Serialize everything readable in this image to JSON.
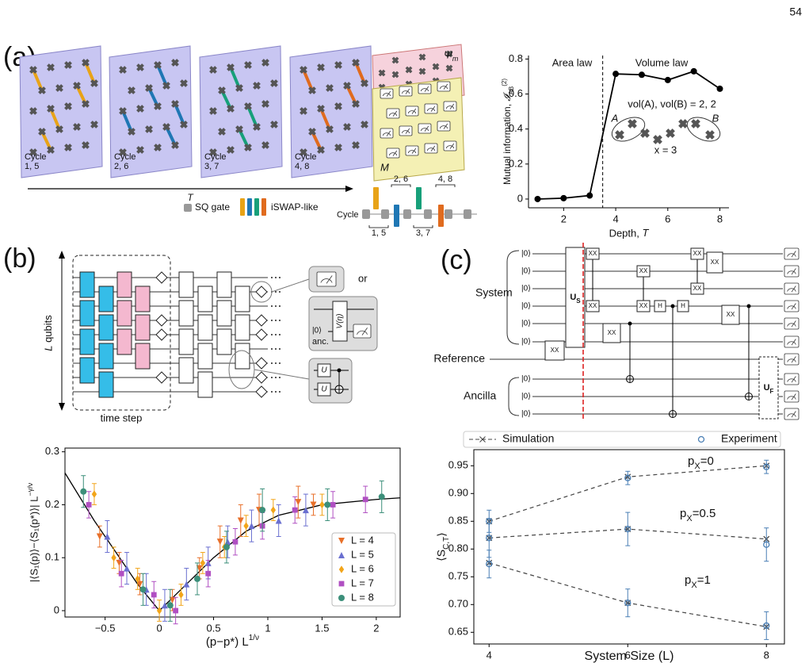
{
  "page_number": "54",
  "panel_a": {
    "label": "(a)",
    "cycles": [
      {
        "word": "Cycle",
        "steps": "1, 5"
      },
      {
        "word": "Cycle",
        "steps": "2, 6"
      },
      {
        "word": "Cycle",
        "steps": "3, 7"
      },
      {
        "word": "Cycle",
        "steps": "4, 8"
      }
    ],
    "cycle_colors": [
      "#e8a317",
      "#1f77b4",
      "#17a07a",
      "#e06b1e"
    ],
    "measured_state": "Ψ",
    "measured_state_sub": "m",
    "measurement": "M",
    "time_axis": "T",
    "legend": {
      "single": "SQ gate",
      "two": "iSWAP-like"
    },
    "circuit": {
      "start": "Cycle",
      "brackets": [
        "1, 5",
        "2, 6",
        "3, 7",
        "4, 8"
      ]
    }
  },
  "panel_b": {
    "label": "(b)",
    "qubits_var": "L",
    "qubits": " qubits",
    "time_step": "time step",
    "or": "or",
    "ket": "|0⟩",
    "ancilla": "anc.",
    "gate_v": "V(η)",
    "gate_u": [
      "U",
      "U"
    ]
  },
  "panel_c": {
    "label": "(c)",
    "system": "System",
    "reference": "Reference",
    "ancilla": "Ancilla",
    "kets": [
      "|0⟩",
      "|0⟩",
      "|0⟩",
      "|0⟩",
      "|0⟩",
      "|0⟩",
      "|0⟩",
      "|0⟩",
      "|0⟩"
    ],
    "unitary_s": "U",
    "unitary_s_sub": "S",
    "unitary_f": "U",
    "unitary_f_sub": "F",
    "gates": [
      "XX",
      "XX",
      "XX",
      "XX",
      "XX",
      "XX",
      "XX",
      "XX",
      "XX",
      "XX",
      "H",
      "H"
    ]
  },
  "chart_data": [
    {
      "type": "line",
      "color": "#000000",
      "x": [
        1,
        2,
        3,
        4,
        5,
        6,
        7,
        8
      ],
      "values": [
        0,
        0.005,
        0.02,
        0.715,
        0.71,
        0.68,
        0.73,
        0.63
      ],
      "xlim": [
        0.65,
        8.35
      ],
      "ylim": [
        -0.05,
        0.82
      ],
      "xticks": [
        2,
        4,
        6,
        8
      ],
      "yticks": [
        0,
        0.2,
        0.4,
        0.6,
        0.8
      ],
      "x_label": "Depth, ",
      "x_label_var": "T",
      "y_label": "Mutual information, ",
      "y_label_symbol": "𝓘",
      "y_label_sub": "AB",
      "y_label_sup": "(2)",
      "divider": 3.5,
      "annotations": {
        "left": "Area law",
        "right": "Volume law",
        "volumes": "vol(A), vol(B) = 2, 2",
        "a": "A",
        "b": "B",
        "distance": "x = 3"
      }
    },
    {
      "type": "scatter",
      "xlim": [
        -0.87,
        2.22
      ],
      "ylim": [
        -0.012,
        0.307
      ],
      "xticks": [
        {
          "value": -0.5,
          "label": "−0.5"
        },
        0,
        0.5,
        1,
        1.5,
        2
      ],
      "yticks": [
        0,
        0.1,
        0.2,
        0.3
      ],
      "x_label": "(p−p*) L",
      "x_label_sup": "1/ν",
      "y_label": "|⟨S₁(p)⟩−⟨S₁(p*)⟩| L",
      "y_label_sup": "−γ/ν",
      "legend": "lower right",
      "series": [
        {
          "name": "L = 4",
          "color": "#e8702a",
          "marker": "triangle-down",
          "x": [
            -0.55,
            -0.37,
            -0.18,
            0.12,
            0.37,
            0.56,
            0.75,
            0.92,
            1.28,
            1.42
          ],
          "values": [
            0.14,
            0.09,
            0.05,
            0.02,
            0.08,
            0.13,
            0.17,
            0.19,
            0.205,
            0.2
          ],
          "errors": [
            0.02,
            0.02,
            0.02,
            0.02,
            0.02,
            0.03,
            0.03,
            0.03,
            0.03,
            0.02
          ]
        },
        {
          "name": "L = 5",
          "color": "#6a6fd0",
          "marker": "triangle-up",
          "x": [
            -0.48,
            -0.3,
            -0.12,
            0.05,
            0.25,
            0.45,
            0.63,
            0.85,
            1.1,
            1.35
          ],
          "values": [
            0.14,
            0.08,
            0.04,
            0.01,
            0.05,
            0.09,
            0.13,
            0.16,
            0.17,
            0.19
          ],
          "errors": [
            0.03,
            0.03,
            0.03,
            0.03,
            0.03,
            0.03,
            0.03,
            0.03,
            0.03,
            0.03
          ]
        },
        {
          "name": "L = 6",
          "color": "#f2a51a",
          "marker": "diamond",
          "x": [
            -0.6,
            -0.42,
            -0.2,
            0,
            0.2,
            0.4,
            0.6,
            0.8,
            1.05,
            1.5
          ],
          "values": [
            0.22,
            0.1,
            0.06,
            0,
            0.03,
            0.09,
            0.12,
            0.16,
            0.19,
            0.2
          ],
          "errors": [
            0.02,
            0.02,
            0.02,
            0.02,
            0.02,
            0.02,
            0.02,
            0.02,
            0.02,
            0.02
          ]
        },
        {
          "name": "L = 7",
          "color": "#b04fc2",
          "marker": "square",
          "x": [
            -0.65,
            -0.35,
            -0.05,
            0.15,
            0.45,
            0.7,
            0.95,
            1.25,
            1.6,
            1.9
          ],
          "values": [
            0.2,
            0.07,
            0.03,
            0,
            0.07,
            0.13,
            0.16,
            0.19,
            0.2,
            0.21
          ],
          "errors": [
            0.025,
            0.025,
            0.025,
            0.025,
            0.025,
            0.025,
            0.025,
            0.025,
            0.025,
            0.025
          ]
        },
        {
          "name": "L = 8",
          "color": "#3c8f7a",
          "marker": "circle",
          "x": [
            -0.7,
            -0.15,
            0.1,
            0.35,
            0.62,
            0.95,
            1.55,
            2.05
          ],
          "values": [
            0.225,
            0.04,
            0.01,
            0.06,
            0.12,
            0.19,
            0.2,
            0.215
          ],
          "errors": [
            0.03,
            0.03,
            0.03,
            0.03,
            0.03,
            0.04,
            0.03,
            0.03
          ]
        }
      ],
      "curve": {
        "color": "#000000",
        "x": [
          -0.87,
          -0.6,
          -0.4,
          -0.2,
          0,
          0.2,
          0.5,
          0.8,
          1.1,
          1.5,
          2,
          2.22
        ],
        "y": [
          0.26,
          0.17,
          0.11,
          0.05,
          0,
          0.04,
          0.1,
          0.15,
          0.18,
          0.2,
          0.21,
          0.213
        ]
      }
    },
    {
      "type": "errorbar",
      "x": [
        4,
        6,
        8
      ],
      "xlim": [
        3.78,
        8.26
      ],
      "ylim": [
        0.629,
        0.979
      ],
      "xticks": [
        4,
        6,
        8
      ],
      "yticks": [
        0.65,
        {
          "value": 0.7,
          "label": "0.70"
        },
        0.75,
        {
          "value": 0.8,
          "label": "0.80"
        },
        0.85,
        {
          "value": 0.9,
          "label": "0.90"
        },
        0.95
      ],
      "x_label": "System Size (L)",
      "y_label": "⟨S",
      "y_label_sub": "C,T",
      "y_label_end": "⟩",
      "legend": "top outside",
      "series": [
        {
          "name": "Simulation",
          "color": "#444444",
          "style": "dashed",
          "values": [
            [
              0.85,
              0.93,
              0.95
            ],
            [
              0.82,
              0.836,
              0.818
            ],
            [
              0.775,
              0.703,
              0.66
            ]
          ]
        },
        {
          "name": "Experiment",
          "color": "#4a7fb5",
          "style": "points",
          "values": [
            [
              0.85,
              0.928,
              0.948
            ],
            [
              0.82,
              0.836,
              0.808
            ],
            [
              0.773,
              0.703,
              0.662
            ]
          ],
          "errors": [
            [
              0.02,
              0.012,
              0.012
            ],
            [
              0.035,
              0.03,
              0.03
            ],
            [
              0.025,
              0.025,
              0.025
            ]
          ]
        }
      ],
      "annotations": [
        {
          "p": "p",
          "sub": "X",
          "rest": "=0"
        },
        {
          "p": "p",
          "sub": "X",
          "rest": "=0.5"
        },
        {
          "p": "p",
          "sub": "X",
          "rest": "=1"
        }
      ]
    }
  ]
}
